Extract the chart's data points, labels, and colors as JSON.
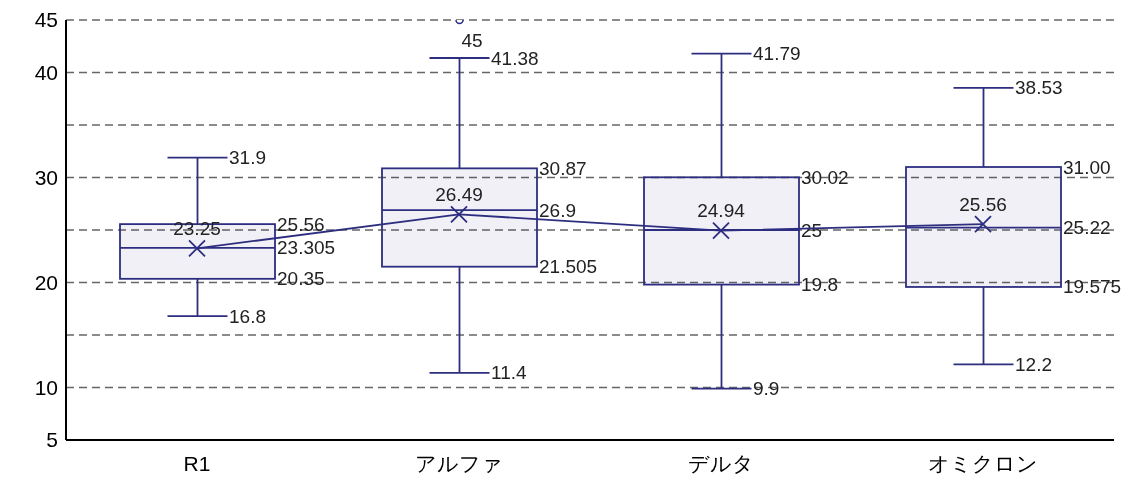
{
  "chart_data": {
    "type": "box",
    "categories": [
      "R1",
      "アルファ",
      "デルタ",
      "オミクロン"
    ],
    "series": [
      {
        "type": "box",
        "color": "#2e2e80",
        "boxes": [
          {
            "low": 16.8,
            "q1": 20.35,
            "median": 23.305,
            "q3": 25.56,
            "high": 31.9
          },
          {
            "low": 11.4,
            "q1": 21.505,
            "median": 26.9,
            "q3": 30.87,
            "high": 41.38,
            "outliers": [
              45
            ]
          },
          {
            "low": 9.9,
            "q1": 19.8,
            "median": 25,
            "q3": 30.02,
            "high": 41.79
          },
          {
            "low": 12.2,
            "q1": 19.575,
            "median": 25.22,
            "q3": 31.0,
            "high": 38.53
          }
        ]
      },
      {
        "type": "line",
        "color": "#2e2e80",
        "marker": "cross",
        "values": [
          23.25,
          26.49,
          24.94,
          25.56
        ]
      }
    ],
    "ylim": [
      5,
      45
    ],
    "yticks": [
      5,
      10,
      {
        "value": 15,
        "label": null
      },
      20,
      {
        "value": 25,
        "label": null
      },
      30,
      {
        "value": 35,
        "label": null
      },
      40,
      45
    ],
    "grid": "y",
    "annotations": [
      {
        "text": "31.9",
        "x": "R1",
        "y": 31.9
      },
      "25.56",
      "23.305",
      "20.35",
      {
        "text": "16.8",
        "x": "R1",
        "y": 16.8
      },
      {
        "text": "23.25",
        "x": "R1",
        "y": 23.25
      },
      "45",
      {
        "text": "41.38",
        "x": "アルファ",
        "y": 41.38
      },
      "30.87",
      "26.9",
      "21.505",
      {
        "text": "11.4",
        "x": "アルファ",
        "y": 11.4
      },
      {
        "text": "26.49",
        "x": "アルファ",
        "y": 26.49
      },
      {
        "text": "41.79",
        "x": "デルタ",
        "y": 41.79
      },
      "30.02",
      "25",
      "19.8",
      {
        "text": "9.9",
        "x": "デルタ",
        "y": 9.9
      },
      {
        "text": "24.94",
        "x": "デルタ",
        "y": 24.94
      },
      {
        "text": "38.53",
        "x": "オミクロン",
        "y": 38.53
      },
      "31.00",
      "25.22",
      "19.575",
      {
        "text": "12.2",
        "x": "オミクロン",
        "y": 12.2
      },
      {
        "text": "25.56",
        "x": "オミクロン",
        "y": 25.56
      }
    ]
  }
}
